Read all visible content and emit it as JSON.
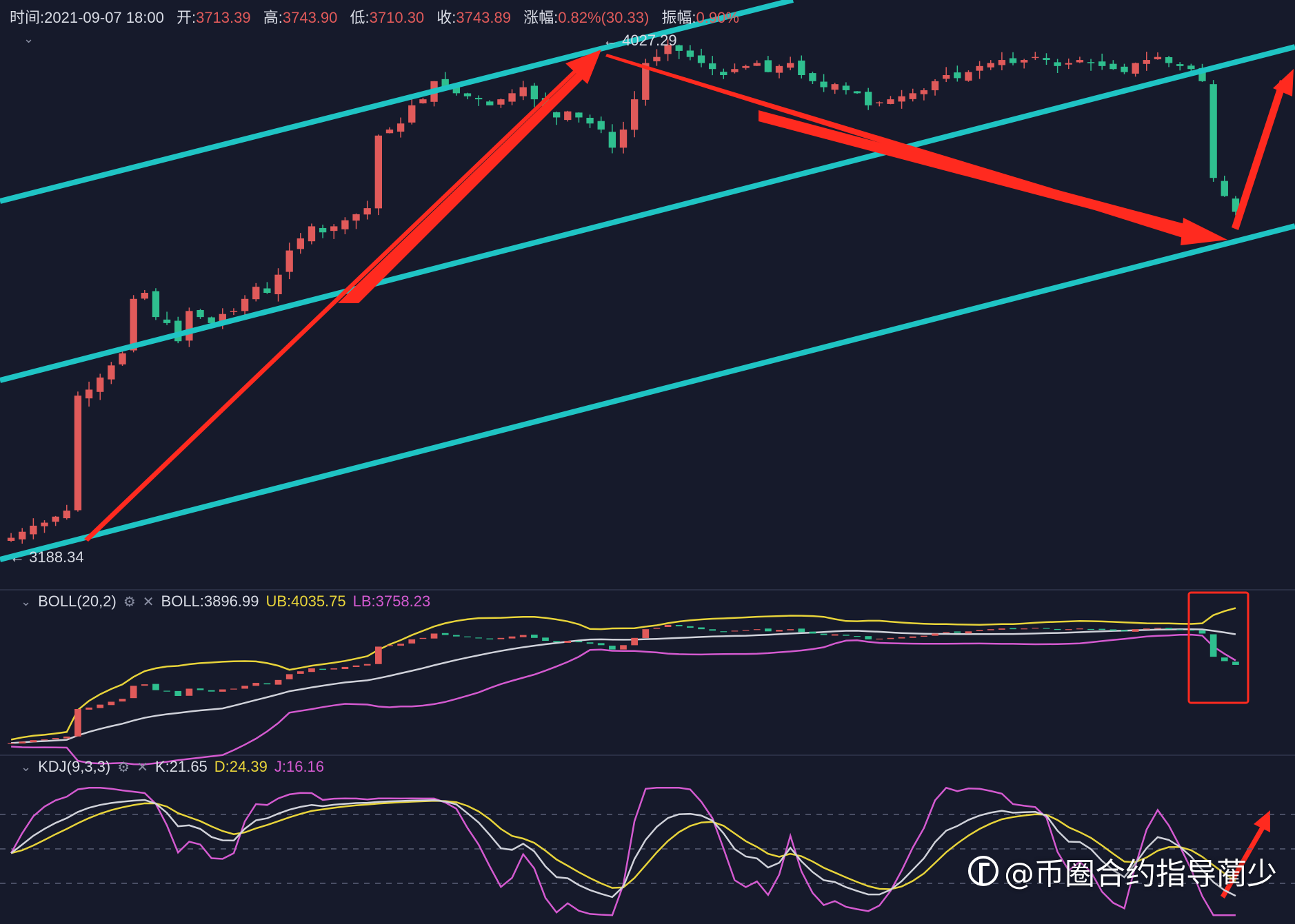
{
  "header": {
    "time_label": "时间:",
    "time_value": "2021-09-07 18:00",
    "open_label": "开:",
    "open_value": "3713.39",
    "high_label": "高:",
    "high_value": "3743.90",
    "low_label": "低:",
    "low_value": "3710.30",
    "close_label": "收:",
    "close_value": "3743.89",
    "change_label": "涨幅:",
    "change_value": "0.82%(30.33)",
    "amp_label": "振幅:",
    "amp_value": "0.90%"
  },
  "main_chart": {
    "high_marker": "← 4027.29",
    "low_marker": "← 3188.34"
  },
  "boll": {
    "name": "BOLL(20,2)",
    "boll": "BOLL:3896.99",
    "ub": "UB:4035.75",
    "lb": "LB:3758.23"
  },
  "kdj": {
    "name": "KDJ(9,3,3)",
    "k": "K:21.65",
    "d": "D:24.39",
    "j": "J:16.16"
  },
  "watermark": "@币圈合约指导蔺少",
  "colors": {
    "background": "#161a2b",
    "channel": "#1fc4c4",
    "arrow": "#ff2a1f",
    "up": "#e05a5a",
    "down": "#2fbf8f",
    "ub": "#e8d43a",
    "mid": "#d0d2da",
    "lb": "#d45ad0"
  },
  "chart_data": {
    "type": "candlestick",
    "price_high": 4027.29,
    "price_low": 3188.34,
    "last_close": 3743.89,
    "ylim": [
      3160,
      4060
    ],
    "closes": [
      3205,
      3215,
      3225,
      3230,
      3240,
      3250,
      3440,
      3450,
      3470,
      3490,
      3510,
      3600,
      3610,
      3570,
      3560,
      3530,
      3580,
      3570,
      3560,
      3575,
      3580,
      3600,
      3620,
      3610,
      3640,
      3680,
      3700,
      3720,
      3710,
      3720,
      3730,
      3740,
      3750,
      3870,
      3880,
      3890,
      3920,
      3930,
      3960,
      3950,
      3940,
      3935,
      3930,
      3920,
      3930,
      3940,
      3950,
      3930,
      3910,
      3900,
      3910,
      3900,
      3890,
      3880,
      3850,
      3880,
      3930,
      3990,
      4000,
      4020,
      4010,
      4000,
      3990,
      3980,
      3970,
      3980,
      3985,
      3990,
      3975,
      3985,
      3990,
      3970,
      3960,
      3950,
      3955,
      3945,
      3940,
      3920,
      3925,
      3930,
      3935,
      3940,
      3945,
      3960,
      3970,
      3965,
      3975,
      3985,
      3990,
      3995,
      3990,
      3995,
      4000,
      3995,
      3985,
      3990,
      3995,
      3990,
      3985,
      3980,
      3975,
      3990,
      3995,
      4000,
      3990,
      3985,
      3980,
      3960,
      3800,
      3770,
      3744
    ]
  }
}
